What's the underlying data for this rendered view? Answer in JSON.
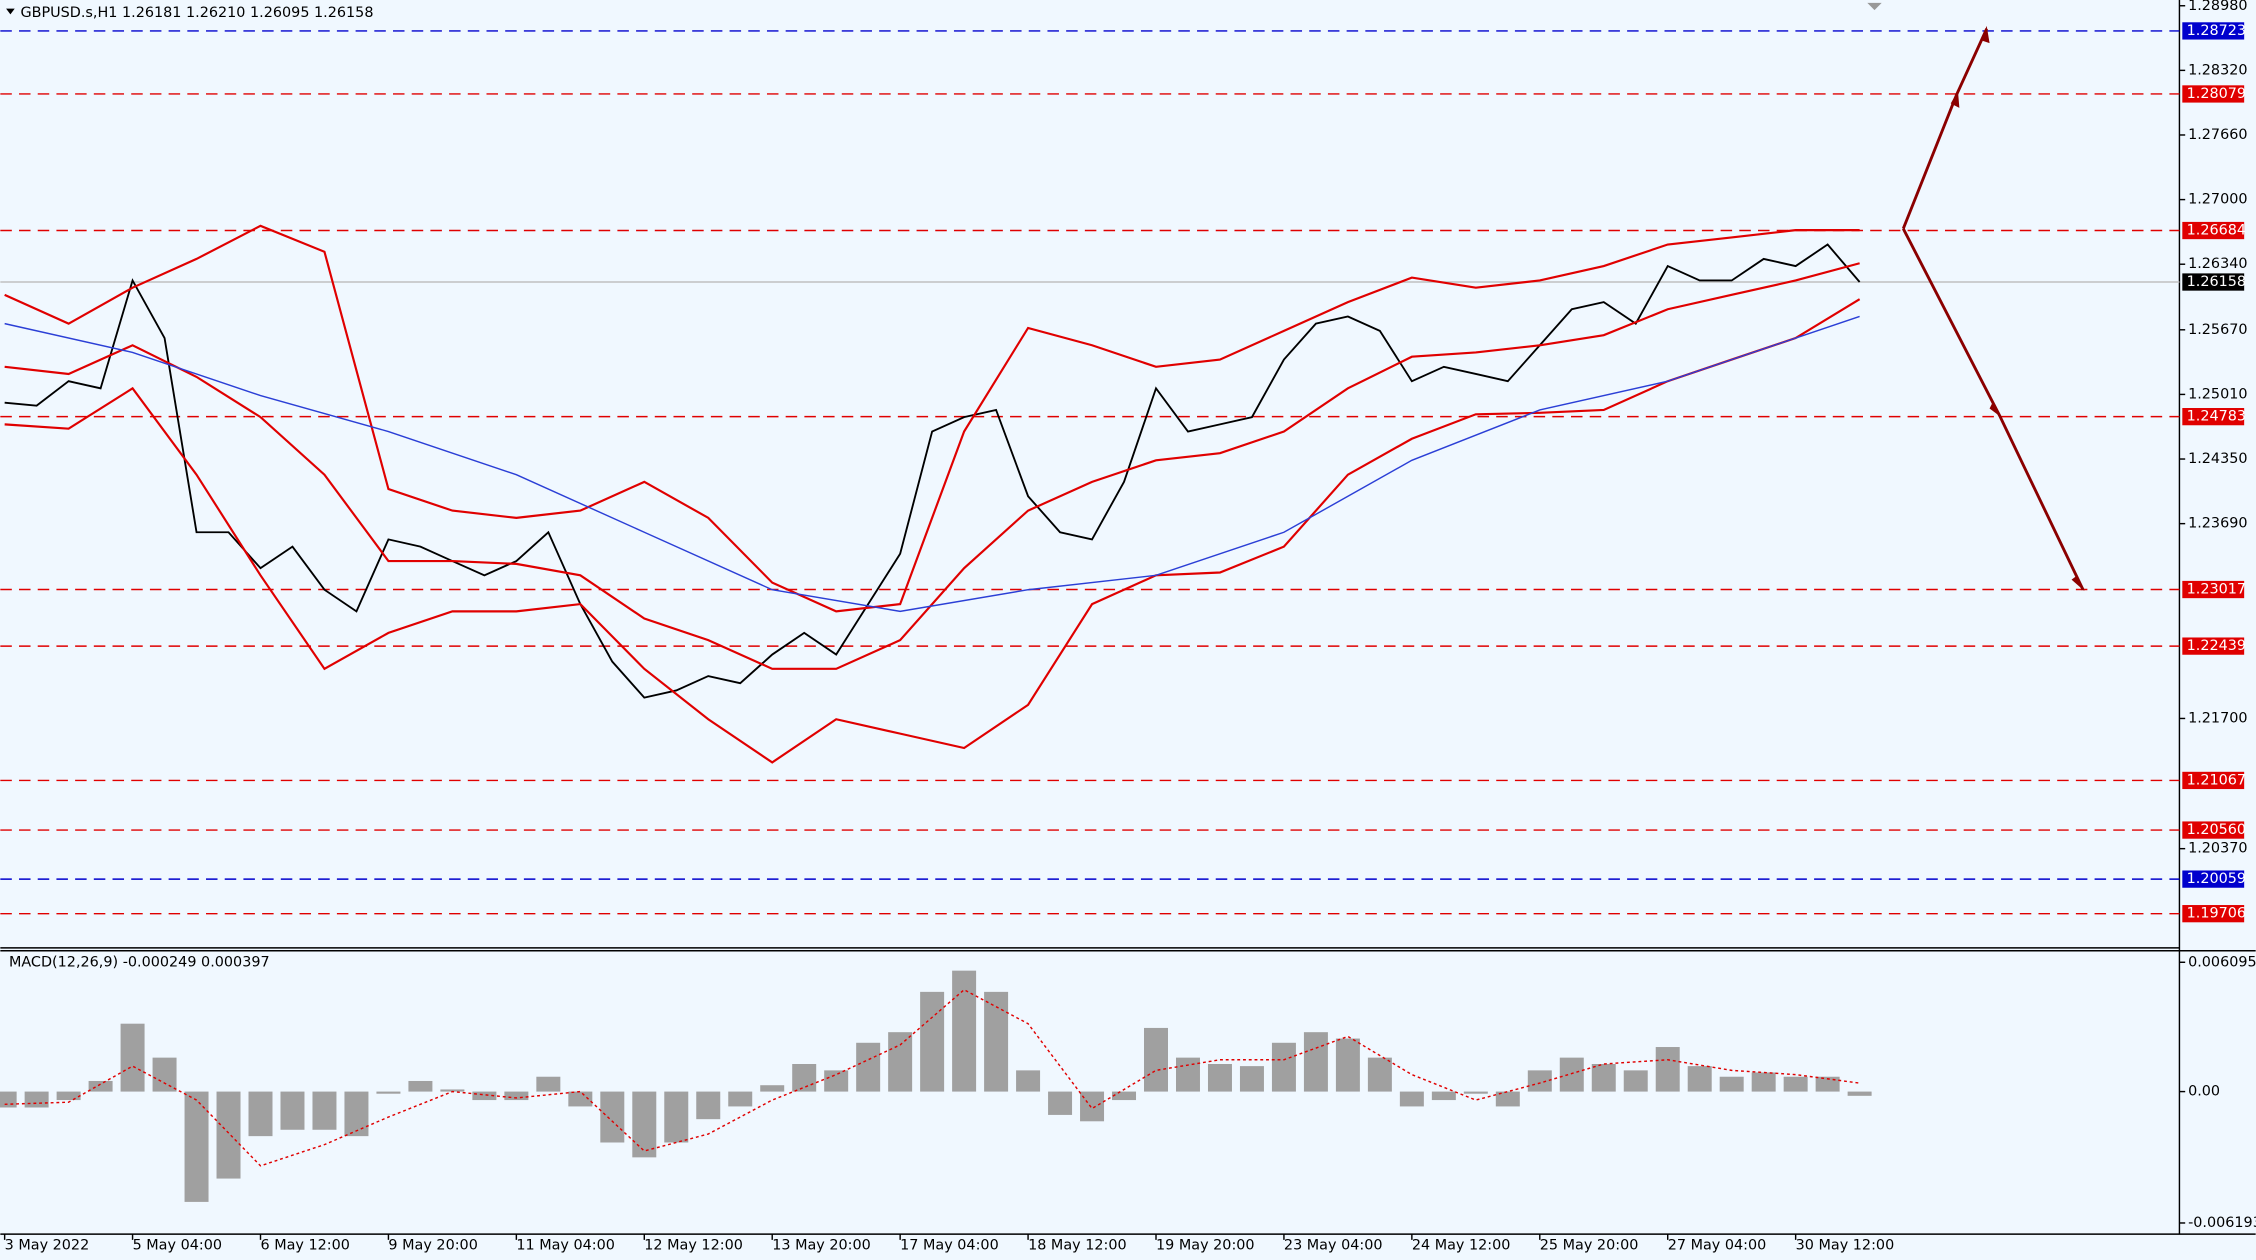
{
  "chart_data": [
    {
      "type": "line",
      "title": "GBPUSD.s,H1  1.26181 1.26210 1.26095 1.26158",
      "xlim": [
        0,
        544
      ],
      "ylim": [
        1.19386,
        1.2898
      ],
      "xticks": [
        {
          "value": 0,
          "label": "3 May 2022"
        },
        {
          "value": 32,
          "label": "5 May 04:00"
        },
        {
          "value": 64,
          "label": "6 May 12:00"
        },
        {
          "value": 96,
          "label": "9 May 20:00"
        },
        {
          "value": 128,
          "label": "11 May 04:00"
        },
        {
          "value": 160,
          "label": "12 May 12:00"
        },
        {
          "value": 192,
          "label": "13 May 20:00"
        },
        {
          "value": 224,
          "label": "17 May 04:00"
        },
        {
          "value": 256,
          "label": "18 May 12:00"
        },
        {
          "value": 288,
          "label": "19 May 20:00"
        },
        {
          "value": 320,
          "label": "23 May 04:00"
        },
        {
          "value": 352,
          "label": "24 May 12:00"
        },
        {
          "value": 384,
          "label": "25 May 20:00"
        },
        {
          "value": 416,
          "label": "27 May 04:00"
        },
        {
          "value": 448,
          "label": "30 May 12:00"
        }
      ],
      "yticks": [
        {
          "value": 1.2898,
          "label": "1.28980"
        },
        {
          "value": 1.2832,
          "label": "1.28320"
        },
        {
          "value": 1.2766,
          "label": "1.27660"
        },
        {
          "value": 1.27,
          "label": "1.27000"
        },
        {
          "value": 1.2634,
          "label": "1.26340"
        },
        {
          "value": 1.2567,
          "label": "1.25670"
        },
        {
          "value": 1.2501,
          "label": "1.25010"
        },
        {
          "value": 1.2435,
          "label": "1.24350"
        },
        {
          "value": 1.2369,
          "label": "1.23690"
        },
        {
          "value": 1.217,
          "label": "1.21700"
        },
        {
          "value": 1.2037,
          "label": "1.20370"
        }
      ],
      "levels": [
        {
          "value": 1.28723,
          "color": "#0000cd"
        },
        {
          "value": 1.28079,
          "color": "#e00000"
        },
        {
          "value": 1.26684,
          "color": "#e00000"
        },
        {
          "value": 1.24783,
          "color": "#e00000"
        },
        {
          "value": 1.23017,
          "color": "#e00000"
        },
        {
          "value": 1.22439,
          "color": "#e00000"
        },
        {
          "value": 1.21067,
          "color": "#e00000"
        },
        {
          "value": 1.2056,
          "label": "1.20560",
          "color": "#e00000"
        },
        {
          "value": 1.20059,
          "color": "#0000cd"
        },
        {
          "value": 1.19706,
          "color": "#e00000"
        }
      ],
      "current_price": 1.26158,
      "series": [
        {
          "color": "#000000",
          "style": "price",
          "x": [
            0,
            8,
            16,
            24,
            32,
            40,
            48,
            56,
            64,
            72,
            80,
            88,
            96,
            104,
            112,
            120,
            128,
            136,
            144,
            152,
            160,
            168,
            176,
            184,
            192,
            200,
            208,
            216,
            224,
            232,
            240,
            248,
            256,
            264,
            272,
            280,
            288,
            296,
            304,
            312,
            320,
            328,
            336,
            344,
            352,
            360,
            368,
            376,
            384,
            392,
            400,
            408,
            416,
            424,
            432,
            440,
            448,
            456,
            464
          ],
          "values": [
            1.24925,
            1.24895,
            1.25145,
            1.25072,
            1.26174,
            1.25586,
            1.23602,
            1.23602,
            1.23235,
            1.23455,
            1.23015,
            1.22794,
            1.23529,
            1.23455,
            1.23308,
            1.23162,
            1.23308,
            1.23602,
            1.22868,
            1.2228,
            1.21913,
            1.21986,
            1.22133,
            1.2206,
            1.22353,
            1.22574,
            1.22353,
            1.22868,
            1.23382,
            1.24631,
            1.24778,
            1.24851,
            1.2397,
            1.23602,
            1.23529,
            1.24117,
            1.25072,
            1.24631,
            1.24704,
            1.24778,
            1.25366,
            1.25733,
            1.25806,
            1.25659,
            1.25145,
            1.25292,
            1.25219,
            1.25145,
            1.25512,
            1.2588,
            1.25953,
            1.25733,
            1.26321,
            1.26174,
            1.26174,
            1.26394,
            1.26321,
            1.26541,
            1.26158
          ]
        },
        {
          "color": "#e00000",
          "style": "band",
          "x": [
            0,
            16,
            32,
            48,
            64,
            80,
            96,
            112,
            128,
            144,
            160,
            176,
            192,
            208,
            224,
            240,
            256,
            272,
            288,
            304,
            320,
            336,
            352,
            368,
            384,
            400,
            416,
            432,
            448,
            464
          ],
          "values": [
            1.26027,
            1.25733,
            1.261,
            1.26394,
            1.26732,
            1.26467,
            1.24043,
            1.23823,
            1.23749,
            1.23823,
            1.24117,
            1.23749,
            1.23088,
            1.22794,
            1.22868,
            1.24631,
            1.25689,
            1.25512,
            1.25292,
            1.25366,
            1.25659,
            1.25953,
            1.26203,
            1.261,
            1.26174,
            1.26321,
            1.26541,
            1.26614,
            1.26688,
            1.26688
          ]
        },
        {
          "color": "#e00000",
          "style": "band",
          "x": [
            0,
            16,
            32,
            48,
            64,
            80,
            96,
            112,
            128,
            144,
            160,
            176,
            192,
            208,
            224,
            240,
            256,
            272,
            288,
            304,
            320,
            336,
            352,
            368,
            384,
            400,
            416,
            432,
            448,
            464
          ],
          "values": [
            1.25292,
            1.25219,
            1.25512,
            1.25189,
            1.24778,
            1.2419,
            1.23308,
            1.23308,
            1.23279,
            1.23162,
            1.22721,
            1.225,
            1.22207,
            1.22207,
            1.225,
            1.23235,
            1.23823,
            1.24117,
            1.24337,
            1.2441,
            1.24631,
            1.25072,
            1.25395,
            1.25439,
            1.25512,
            1.25615,
            1.2588,
            1.26027,
            1.26174,
            1.2635
          ]
        },
        {
          "color": "#e00000",
          "style": "band",
          "x": [
            0,
            16,
            32,
            48,
            64,
            80,
            96,
            112,
            128,
            144,
            160,
            176,
            192,
            208,
            224,
            240,
            256,
            272,
            288,
            304,
            320,
            336,
            352,
            368,
            384,
            400,
            416,
            432,
            448,
            464
          ],
          "values": [
            1.24704,
            1.2466,
            1.25072,
            1.2419,
            1.23162,
            1.22207,
            1.22574,
            1.22794,
            1.22794,
            1.22868,
            1.22207,
            1.21692,
            1.21251,
            1.21692,
            1.21545,
            1.21398,
            1.21839,
            1.22868,
            1.23162,
            1.23191,
            1.23455,
            1.2419,
            1.24557,
            1.24807,
            1.24822,
            1.24851,
            1.25145,
            1.25366,
            1.25586,
            1.25983
          ]
        },
        {
          "color": "#2b3fd6",
          "style": "ma",
          "x": [
            0,
            32,
            64,
            96,
            128,
            160,
            192,
            224,
            256,
            288,
            320,
            352,
            384,
            416,
            448,
            464
          ],
          "values": [
            1.25733,
            1.25439,
            1.24998,
            1.24631,
            1.2419,
            1.23602,
            1.23015,
            1.22794,
            1.23015,
            1.23162,
            1.23602,
            1.24337,
            1.24851,
            1.25145,
            1.25586,
            1.25806
          ]
        }
      ]
    },
    {
      "type": "macd",
      "title": "MACD(12,26,9) -0.000249 0.000397",
      "xlim": [
        0,
        544
      ],
      "ylim": [
        -0.00665,
        0.00657
      ],
      "yticks": [
        0.006095,
        {
          "value": 0,
          "label": "0.00"
        },
        -0.006193
      ],
      "series": [
        {
          "color": "#a0a0a0",
          "style": "bar",
          "x": [
            0,
            8,
            16,
            24,
            32,
            40,
            48,
            56,
            64,
            72,
            80,
            88,
            96,
            104,
            112,
            120,
            128,
            136,
            144,
            152,
            160,
            168,
            176,
            184,
            192,
            200,
            208,
            216,
            224,
            232,
            240,
            248,
            256,
            264,
            272,
            280,
            288,
            296,
            304,
            312,
            320,
            328,
            336,
            344,
            352,
            360,
            368,
            376,
            384,
            392,
            400,
            408,
            416,
            424,
            432,
            440,
            448,
            456,
            464
          ],
          "values": [
            -0.00075,
            -0.00075,
            -0.0004,
            0.0005,
            0.0032,
            0.0016,
            -0.0052,
            -0.0041,
            -0.0021,
            -0.0018,
            -0.0018,
            -0.0021,
            -0.0001,
            0.0005,
            0.0001,
            -0.0004,
            -0.0004,
            0.0007,
            -0.0007,
            -0.0024,
            -0.0031,
            -0.0024,
            -0.0013,
            -0.0007,
            0.0003,
            0.0013,
            0.001,
            0.0023,
            0.0028,
            0.0047,
            0.0057,
            0.0047,
            0.001,
            -0.0011,
            -0.0014,
            -0.0004,
            0.003,
            0.0016,
            0.0013,
            0.0012,
            0.0023,
            0.0028,
            0.0025,
            0.0016,
            -0.0007,
            -0.0004,
            -0.0001,
            -0.0007,
            0.001,
            0.0016,
            0.0013,
            0.001,
            0.0021,
            0.0012,
            0.0007,
            0.0009,
            0.0007,
            0.0007,
            -0.0002
          ]
        },
        {
          "color": "#e00000",
          "style": "signal",
          "x": [
            0,
            16,
            32,
            48,
            64,
            80,
            96,
            112,
            128,
            144,
            160,
            176,
            192,
            208,
            224,
            240,
            256,
            272,
            288,
            304,
            320,
            336,
            352,
            368,
            384,
            400,
            416,
            432,
            448,
            464
          ],
          "values": [
            -0.0006,
            -0.0005,
            0.0012,
            -0.0004,
            -0.0035,
            -0.0025,
            -0.0012,
            0,
            -0.0003,
            0,
            -0.0028,
            -0.002,
            -0.0004,
            0.0008,
            0.0022,
            0.0048,
            0.0032,
            -0.0008,
            0.001,
            0.0015,
            0.0015,
            0.0026,
            0.0008,
            -0.0004,
            0.0004,
            0.0013,
            0.0015,
            0.001,
            0.0008,
            0.0004
          ]
        }
      ]
    }
  ]
}
